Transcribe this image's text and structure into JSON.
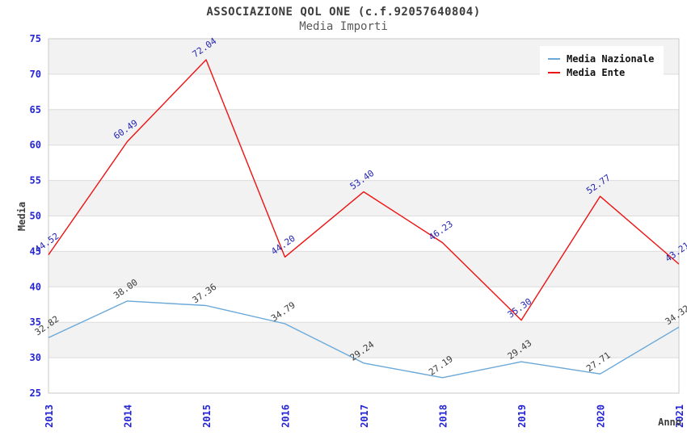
{
  "header": {
    "title": "ASSOCIAZIONE QOL ONE (c.f.92057640804)",
    "subtitle": "Media Importi"
  },
  "chart_data": {
    "type": "line",
    "title": "ASSOCIAZIONE QOL ONE (c.f.92057640804)",
    "subtitle": "Media Importi",
    "xlabel": "Anno",
    "ylabel": "Media",
    "x": [
      2013,
      2014,
      2015,
      2016,
      2017,
      2018,
      2019,
      2020,
      2021
    ],
    "ylim": [
      25,
      75
    ],
    "ytick_step": 5,
    "grid": "horizontal-stripes",
    "legend_position": "top-right",
    "series": [
      {
        "name": "Media Nazionale",
        "color": "#69a8d8",
        "label_color": "#3a3a3a",
        "values": [
          32.82,
          38.0,
          37.36,
          34.79,
          29.24,
          27.19,
          29.43,
          27.71,
          34.32
        ]
      },
      {
        "name": "Media Ente",
        "color": "#ee1111",
        "label_color": "#2424b4",
        "values": [
          44.52,
          60.49,
          72.04,
          44.2,
          53.4,
          46.23,
          35.3,
          52.77,
          43.21
        ]
      }
    ]
  },
  "colors": {
    "tick_label": "#2424d6",
    "axis_title": "#3c3c3c",
    "stripe": "#f2f2f2",
    "gridline": "#dcdcdc",
    "plot_border": "#c9c9c9",
    "title": "#3c3c3c",
    "subtitle": "#5a5a5a"
  }
}
